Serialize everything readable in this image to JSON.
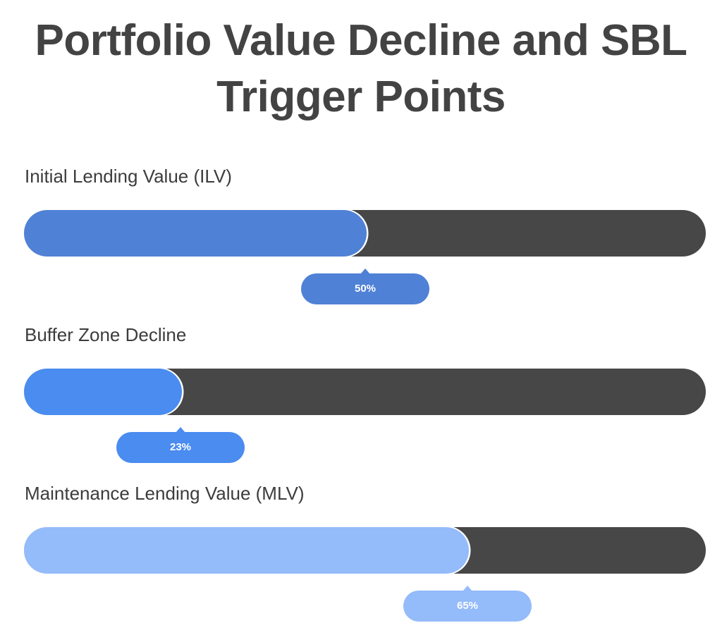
{
  "chart_data": {
    "type": "bar",
    "orientation": "horizontal",
    "title": "Portfolio Value Decline and SBL Trigger Points",
    "xlabel": "",
    "ylabel": "",
    "xlim": [
      0,
      100
    ],
    "grid": false,
    "legend": "none",
    "track_color": "#474747",
    "series": [
      {
        "label": "Initial Lending Value (ILV)",
        "value": 50,
        "value_label": "50%",
        "color": "#4f81d6"
      },
      {
        "label": "Buffer Zone Decline",
        "value": 23,
        "value_label": "23%",
        "color": "#4a8cef"
      },
      {
        "label": "Maintenance Lending Value (MLV)",
        "value": 65,
        "value_label": "65%",
        "color": "#94bbfa"
      }
    ]
  }
}
